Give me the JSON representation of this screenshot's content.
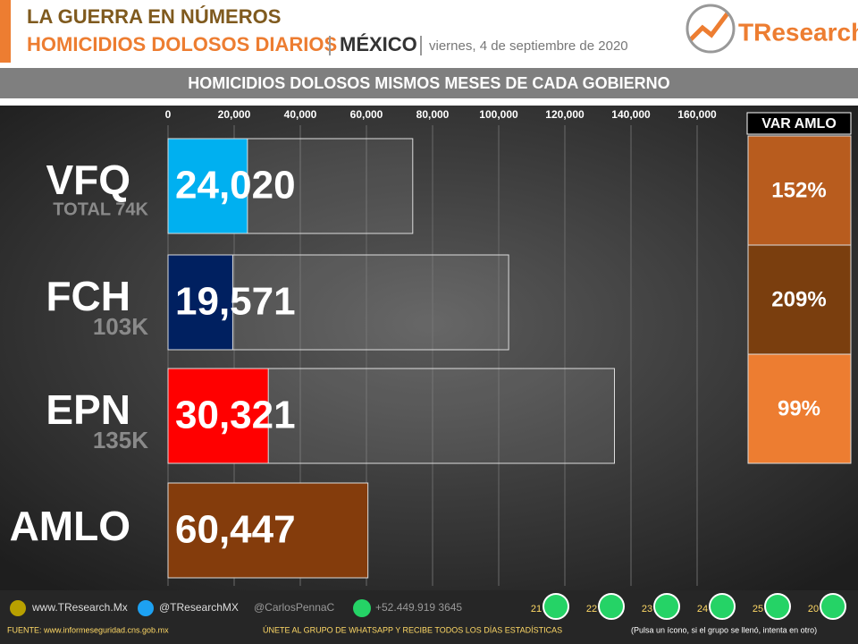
{
  "header": {
    "title": "LA GUERRA EN NÚMEROS",
    "subtitle": "HOMICIDIOS DOLOSOS DIARIOS",
    "region": "MÉXICO",
    "date": "viernes,  4 de septiembre  de 2020",
    "logo": "TResearch"
  },
  "chart_data": {
    "type": "bar",
    "orientation": "horizontal",
    "title": "HOMICIDIOS DOLOSOS MISMOS MESES DE CADA GOBIERNO",
    "categories": [
      "VFQ",
      "FCH",
      "EPN",
      "AMLO"
    ],
    "values": [
      24020,
      19571,
      30321,
      60447
    ],
    "value_labels": [
      "24,020",
      "19,571",
      "30,321",
      "60,447"
    ],
    "colors": [
      "#00b0f0",
      "#002060",
      "#ff0000",
      "#843c0c"
    ],
    "totals": {
      "values": [
        74000,
        103000,
        135000
      ],
      "value_labels": [
        "TOTAL 74K",
        "103K",
        "135K"
      ]
    },
    "xlim": [
      0,
      160000
    ],
    "xticks": [
      0,
      {
        "value": 20000,
        "label": "20,000"
      },
      {
        "value": 40000,
        "label": "40,000"
      },
      {
        "value": 60000,
        "label": "60,000"
      },
      {
        "value": 80000,
        "label": "80,000"
      },
      {
        "value": 100000,
        "label": "100,000"
      },
      {
        "value": 120000,
        "label": "120,000"
      },
      {
        "value": 140000,
        "label": "140,000"
      },
      {
        "value": 160000,
        "label": "160,000"
      }
    ],
    "grid": true,
    "var_amlo": {
      "title": "VAR AMLO",
      "values": [
        152,
        209,
        99
      ],
      "value_labels": [
        "152%",
        "209%",
        "99%"
      ],
      "colors": [
        "#b85c1e",
        "#7a3e0e",
        "#ed7d31"
      ]
    }
  },
  "footer": {
    "web": "www.TResearch.Mx",
    "twitter": "@TResearchMX",
    "twitter2": "@CarlosPennaC",
    "phone": "+52.449.919 3645",
    "groups": [
      21,
      22,
      23,
      24,
      25,
      20
    ],
    "source": "FUENTE:  www.informeseguridad.cns.gob.mx",
    "join": "ÚNETE  AL GRUPO  DE  WHATSAPP  Y RECIBE  TODOS  LOS  DÍAS  ESTADÍSTICAS",
    "note": "(Pulsa un ícono, si el grupo se llenó, intenta en otro)"
  }
}
